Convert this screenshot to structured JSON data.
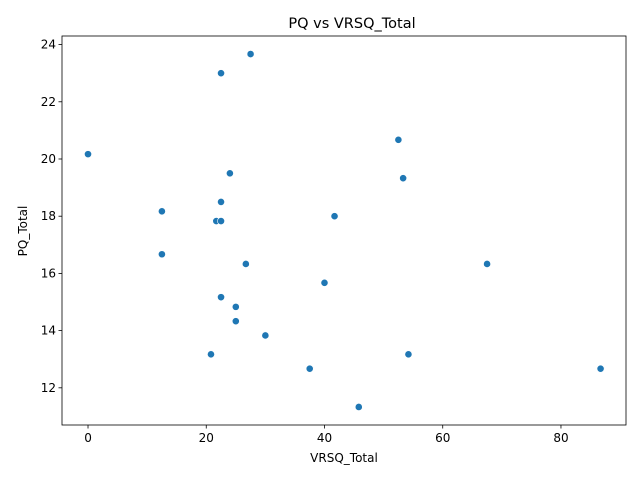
{
  "chart_data": {
    "type": "scatter",
    "title": "PQ vs VRSQ_Total",
    "xlabel": "VRSQ_Total",
    "ylabel": "PQ_Total",
    "xlim": [
      -4.4,
      91.0
    ],
    "ylim": [
      10.7,
      24.3
    ],
    "xticks": [
      0,
      20,
      40,
      60,
      80
    ],
    "yticks": [
      12,
      14,
      16,
      18,
      20,
      22,
      24
    ],
    "grid": false,
    "legend": "none",
    "marker_color": "#1f77b4",
    "points": [
      {
        "x": 27.5,
        "y": 23.67
      },
      {
        "x": 22.5,
        "y": 23.0
      },
      {
        "x": 52.5,
        "y": 20.67
      },
      {
        "x": 0.0,
        "y": 20.17
      },
      {
        "x": 24.0,
        "y": 19.5
      },
      {
        "x": 53.3,
        "y": 19.33
      },
      {
        "x": 22.5,
        "y": 18.5
      },
      {
        "x": 12.5,
        "y": 18.17
      },
      {
        "x": 41.7,
        "y": 18.0
      },
      {
        "x": 21.7,
        "y": 17.83
      },
      {
        "x": 22.5,
        "y": 17.83
      },
      {
        "x": 12.5,
        "y": 16.67
      },
      {
        "x": 26.7,
        "y": 16.33
      },
      {
        "x": 67.5,
        "y": 16.33
      },
      {
        "x": 40.0,
        "y": 15.67
      },
      {
        "x": 22.5,
        "y": 15.17
      },
      {
        "x": 25.0,
        "y": 14.83
      },
      {
        "x": 25.0,
        "y": 14.33
      },
      {
        "x": 30.0,
        "y": 13.83
      },
      {
        "x": 20.8,
        "y": 13.17
      },
      {
        "x": 54.2,
        "y": 13.17
      },
      {
        "x": 37.5,
        "y": 12.67
      },
      {
        "x": 86.7,
        "y": 12.67
      },
      {
        "x": 45.8,
        "y": 11.33
      }
    ]
  }
}
